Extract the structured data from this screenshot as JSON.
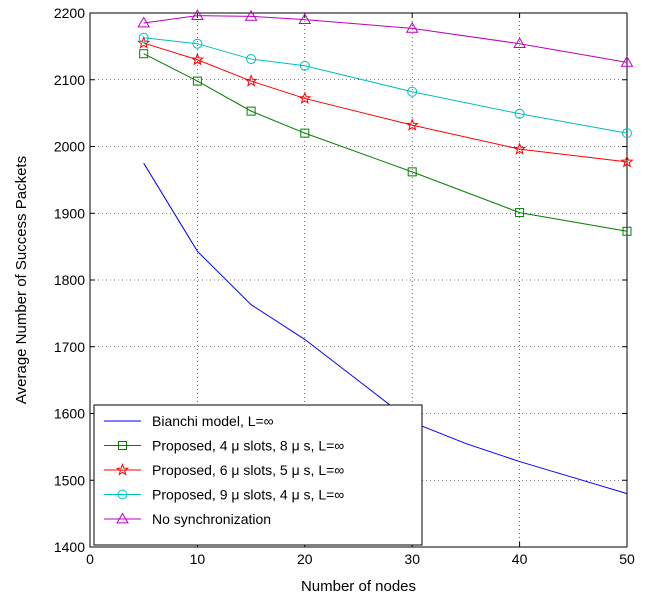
{
  "chart_data": {
    "type": "line",
    "title": "",
    "xlabel": "Number of nodes",
    "ylabel": "Average Number of Success Packets",
    "xlim": [
      0,
      50
    ],
    "ylim": [
      1400,
      2200
    ],
    "xticks": [
      0,
      10,
      20,
      30,
      40,
      50
    ],
    "yticks": [
      1400,
      1500,
      1600,
      1700,
      1800,
      1900,
      2000,
      2100,
      2200
    ],
    "grid": true,
    "legend_position": "bottom-left",
    "series": [
      {
        "name": "Bianchi model, L=∞",
        "color": "#0000ff",
        "marker": "none",
        "x": [
          5,
          10,
          15,
          20,
          25,
          30,
          35,
          40,
          45,
          50
        ],
        "y": [
          1975,
          1843,
          1763,
          1711,
          1649,
          1587,
          1555,
          1528,
          1504,
          1480
        ]
      },
      {
        "name": "Proposed, 4 μ slots, 8 μ s, L=∞",
        "color": "#008000",
        "marker": "square",
        "x": [
          5,
          10,
          15,
          20,
          30,
          40,
          50
        ],
        "y": [
          2139,
          2098,
          2053,
          2020,
          1962,
          1901,
          1873
        ]
      },
      {
        "name": "Proposed, 6 μ slots, 5 μ s, L=∞",
        "color": "#ff0000",
        "marker": "star",
        "x": [
          5,
          10,
          15,
          20,
          30,
          40,
          50
        ],
        "y": [
          2155,
          2130,
          2098,
          2072,
          2032,
          1996,
          1977
        ]
      },
      {
        "name": "Proposed, 9 μ slots, 4 μ s, L=∞",
        "color": "#00bfbf",
        "marker": "circle",
        "x": [
          5,
          10,
          15,
          20,
          30,
          40,
          50
        ],
        "y": [
          2163,
          2154,
          2131,
          2121,
          2082,
          2049,
          2020
        ]
      },
      {
        "name": "No synchronization",
        "color": "#bf00bf",
        "marker": "triangle",
        "x": [
          5,
          10,
          15,
          20,
          30,
          40,
          50
        ],
        "y": [
          2185,
          2196,
          2195,
          2190,
          2177,
          2154,
          2126
        ]
      }
    ]
  }
}
